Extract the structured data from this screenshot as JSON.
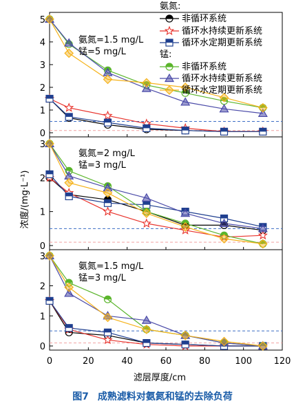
{
  "figure": {
    "number": "图7",
    "caption": "成熟滤料对氨氮和锰的去除负荷",
    "ylabel": "浓度/(mg·L⁻¹)",
    "xlabel": "滤层厚度/cm"
  },
  "legend": {
    "group1_title": "氨氮:",
    "group2_title": "锰:",
    "items": [
      "非循环系统",
      "循环水持续更新系统",
      "循环水定期更新系统"
    ]
  },
  "colors": {
    "nh_noncycle": "#000000",
    "nh_continuous": "#e8312a",
    "nh_periodic": "#1f3f8f",
    "mn_noncycle": "#5bb52c",
    "mn_continuous": "#4a4aa8",
    "mn_periodic": "#f5b21a",
    "blue_dash": "#3a6bc4",
    "red_dash": "#f0a0a0",
    "caption": "#1a5ca8"
  },
  "chart_data": [
    {
      "type": "line",
      "panel": "top",
      "annotation": [
        "氨氮=1.5 mg/L",
        "锰=5 mg/L"
      ],
      "x": [
        0,
        10,
        30,
        50,
        70,
        90,
        110
      ],
      "xlim": [
        0,
        120
      ],
      "ylim": [
        0,
        5.3
      ],
      "yticks": [
        0,
        1,
        2,
        3,
        4,
        5
      ],
      "reference_lines": [
        0.5,
        0.1
      ],
      "series": [
        {
          "group": "nh",
          "name": "非循环系统",
          "marker": "circle",
          "values": [
            1.5,
            0.65,
            0.35,
            0.15,
            0.1,
            0.05,
            0.05
          ]
        },
        {
          "group": "nh",
          "name": "循环水持续更新系统",
          "marker": "star",
          "values": [
            1.5,
            1.1,
            0.75,
            0.4,
            0.2,
            0.05,
            0.05
          ]
        },
        {
          "group": "nh",
          "name": "循环水定期更新系统",
          "marker": "square",
          "values": [
            1.5,
            0.7,
            0.45,
            0.2,
            0.1,
            0.05,
            0.05
          ]
        },
        {
          "group": "mn",
          "name": "非循环系统",
          "marker": "circle",
          "values": [
            5.0,
            3.9,
            2.75,
            2.1,
            1.75,
            1.4,
            1.1
          ]
        },
        {
          "group": "mn",
          "name": "循环水持续更新系统",
          "marker": "triangle",
          "values": [
            5.0,
            3.95,
            2.65,
            1.95,
            1.35,
            1.05,
            0.85
          ]
        },
        {
          "group": "mn",
          "name": "循环水定期更新系统",
          "marker": "diamond",
          "values": [
            5.0,
            3.5,
            2.35,
            2.2,
            2.0,
            1.55,
            1.1
          ]
        }
      ]
    },
    {
      "type": "line",
      "panel": "middle",
      "annotation": [
        "氨氮=2 mg/L",
        "锰=3 mg/L"
      ],
      "x": [
        0,
        10,
        30,
        50,
        70,
        90,
        110
      ],
      "xlim": [
        0,
        120
      ],
      "ylim": [
        0,
        3.2
      ],
      "yticks": [
        0,
        1,
        2,
        3
      ],
      "reference_lines": [
        0.5,
        0.1
      ],
      "series": [
        {
          "group": "nh",
          "name": "非循环系统",
          "marker": "circle",
          "values": [
            2.0,
            1.5,
            1.35,
            1.0,
            0.6,
            0.6,
            0.45
          ]
        },
        {
          "group": "nh",
          "name": "循环水持续更新系统",
          "marker": "star",
          "values": [
            2.0,
            1.55,
            1.0,
            0.65,
            0.45,
            0.25,
            0.3
          ]
        },
        {
          "group": "nh",
          "name": "循环水定期更新系统",
          "marker": "square",
          "values": [
            2.1,
            1.45,
            1.25,
            1.2,
            1.0,
            0.8,
            0.55
          ]
        },
        {
          "group": "mn",
          "name": "非循环系统",
          "marker": "circle",
          "values": [
            3.0,
            2.2,
            1.75,
            1.0,
            0.65,
            0.3,
            0.05
          ]
        },
        {
          "group": "mn",
          "name": "循环水持续更新系统",
          "marker": "triangle",
          "values": [
            3.0,
            2.05,
            1.7,
            1.4,
            0.95,
            0.65,
            0.5
          ]
        },
        {
          "group": "mn",
          "name": "循环水定期更新系统",
          "marker": "diamond",
          "values": [
            3.0,
            1.85,
            1.55,
            0.95,
            0.55,
            0.2,
            0.05
          ]
        }
      ]
    },
    {
      "type": "line",
      "panel": "bottom",
      "annotation": [
        "氨氮=1.5 mg/L",
        "锰=3 mg/L"
      ],
      "x": [
        0,
        10,
        30,
        50,
        70,
        90,
        110
      ],
      "xlim": [
        0,
        120
      ],
      "xticks": [
        0,
        20,
        40,
        60,
        80,
        100,
        120
      ],
      "ylim": [
        0,
        3.2
      ],
      "yticks": [
        0,
        1,
        2,
        3
      ],
      "reference_lines": [
        0.5,
        0.1
      ],
      "series": [
        {
          "group": "nh",
          "name": "非循环系统",
          "marker": "circle",
          "values": [
            1.5,
            0.45,
            0.35,
            0.1,
            0.05,
            0.0,
            0.0
          ]
        },
        {
          "group": "nh",
          "name": "循环水持续更新系统",
          "marker": "star",
          "values": [
            1.5,
            0.55,
            0.2,
            0.05,
            0.0,
            0.0,
            0.0
          ]
        },
        {
          "group": "nh",
          "name": "循环水定期更新系统",
          "marker": "square",
          "values": [
            1.5,
            0.6,
            0.45,
            0.1,
            0.05,
            0.0,
            0.0
          ]
        },
        {
          "group": "mn",
          "name": "非循环系统",
          "marker": "circle",
          "values": [
            3.0,
            2.1,
            1.55,
            0.55,
            0.35,
            0.1,
            0.0
          ]
        },
        {
          "group": "mn",
          "name": "循环水持续更新系统",
          "marker": "triangle",
          "values": [
            3.0,
            1.75,
            1.0,
            0.85,
            0.35,
            0.1,
            0.0
          ]
        },
        {
          "group": "mn",
          "name": "循环水定期更新系统",
          "marker": "diamond",
          "values": [
            3.0,
            1.95,
            0.95,
            0.55,
            0.35,
            0.15,
            0.0
          ]
        }
      ]
    }
  ]
}
